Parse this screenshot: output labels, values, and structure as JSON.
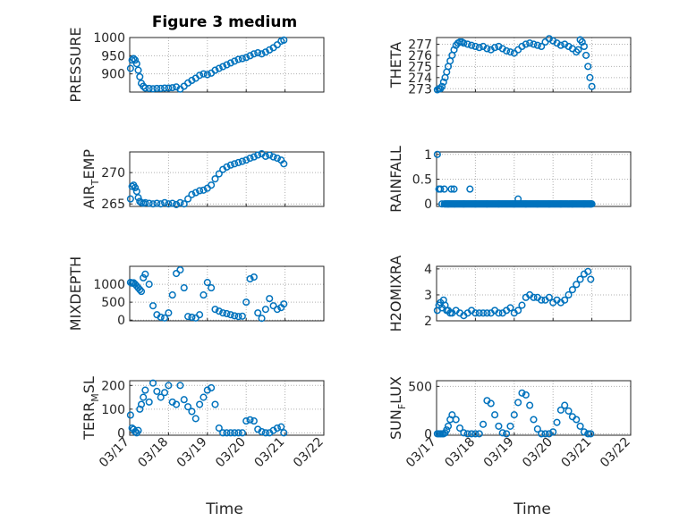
{
  "figure": {
    "title": "Figure 3 medium",
    "marker_color": "#0072BD",
    "x_ticks": [
      "03/17",
      "03/18",
      "03/19",
      "03/20",
      "03/21",
      "03/22"
    ],
    "x_label": "Time"
  },
  "chart_data": [
    {
      "type": "scatter",
      "name": "pressure",
      "ylabel": "PRESSURE",
      "ylabel_sub": "",
      "xlim": [
        0,
        5
      ],
      "ylim": [
        850,
        1000
      ],
      "yticks": [
        900,
        950,
        1000
      ],
      "x": [
        0.02,
        0.06,
        0.1,
        0.14,
        0.18,
        0.22,
        0.26,
        0.3,
        0.35,
        0.4,
        0.5,
        0.6,
        0.7,
        0.8,
        0.9,
        1.0,
        1.1,
        1.2,
        1.3,
        1.4,
        1.5,
        1.6,
        1.7,
        1.8,
        1.9,
        2.0,
        2.1,
        2.2,
        2.3,
        2.4,
        2.5,
        2.6,
        2.7,
        2.8,
        2.9,
        3.0,
        3.1,
        3.2,
        3.3,
        3.4,
        3.5,
        3.6,
        3.7,
        3.8,
        3.9,
        3.97
      ],
      "y": [
        915,
        938,
        942,
        938,
        928,
        910,
        892,
        874,
        866,
        861,
        860,
        859,
        860,
        860,
        861,
        861,
        862,
        864,
        858,
        866,
        875,
        882,
        888,
        896,
        900,
        898,
        902,
        910,
        915,
        920,
        925,
        930,
        935,
        940,
        942,
        945,
        950,
        955,
        958,
        955,
        960,
        966,
        972,
        980,
        990,
        993
      ]
    },
    {
      "type": "scatter",
      "name": "theta",
      "ylabel": "THETA",
      "ylabel_sub": "",
      "xlim": [
        0,
        5
      ],
      "ylim": [
        272.7,
        277.6
      ],
      "yticks": [
        273,
        274,
        275,
        276,
        277
      ],
      "x": [
        0.02,
        0.06,
        0.1,
        0.14,
        0.18,
        0.22,
        0.26,
        0.3,
        0.35,
        0.4,
        0.45,
        0.5,
        0.55,
        0.6,
        0.65,
        0.7,
        0.8,
        0.9,
        1.0,
        1.1,
        1.2,
        1.3,
        1.4,
        1.5,
        1.6,
        1.7,
        1.8,
        1.9,
        2.0,
        2.1,
        2.2,
        2.3,
        2.4,
        2.5,
        2.6,
        2.7,
        2.8,
        2.9,
        3.0,
        3.1,
        3.2,
        3.3,
        3.4,
        3.5,
        3.6,
        3.65,
        3.7,
        3.75,
        3.8,
        3.85,
        3.9,
        3.95,
        4.0
      ],
      "y": [
        272.9,
        273.0,
        273.0,
        273.2,
        273.6,
        274.0,
        274.5,
        275.0,
        275.5,
        276.0,
        276.5,
        276.9,
        277.1,
        277.2,
        277.2,
        277.1,
        277.0,
        276.9,
        276.8,
        276.7,
        276.8,
        276.6,
        276.5,
        276.7,
        276.8,
        276.6,
        276.4,
        276.3,
        276.2,
        276.5,
        276.8,
        277.0,
        277.1,
        277.0,
        276.9,
        276.8,
        277.2,
        277.5,
        277.3,
        277.1,
        276.9,
        277.0,
        276.8,
        276.6,
        276.3,
        276.5,
        277.4,
        277.2,
        276.8,
        276.0,
        275.0,
        274.0,
        273.2
      ]
    },
    {
      "type": "scatter",
      "name": "air_temp",
      "ylabel": "AIR",
      "ylabel_sub": "T",
      "ylabel_suffix": "EMP",
      "xlim": [
        0,
        5
      ],
      "ylim": [
        264.6,
        273.3
      ],
      "yticks": [
        265,
        270
      ],
      "x": [
        0.02,
        0.06,
        0.1,
        0.14,
        0.18,
        0.22,
        0.26,
        0.3,
        0.35,
        0.4,
        0.5,
        0.6,
        0.7,
        0.8,
        0.9,
        1.0,
        1.1,
        1.2,
        1.3,
        1.4,
        1.5,
        1.6,
        1.7,
        1.8,
        1.9,
        2.0,
        2.1,
        2.2,
        2.3,
        2.4,
        2.5,
        2.6,
        2.7,
        2.8,
        2.9,
        3.0,
        3.1,
        3.2,
        3.3,
        3.4,
        3.5,
        3.6,
        3.7,
        3.8,
        3.9,
        3.97
      ],
      "y": [
        265.8,
        267.8,
        268.0,
        267.6,
        267.0,
        266.0,
        265.4,
        265.2,
        265.1,
        265.2,
        265.1,
        265.0,
        265.1,
        265.0,
        265.2,
        265.0,
        265.1,
        264.9,
        265.2,
        265.0,
        265.8,
        266.5,
        266.8,
        267.1,
        267.2,
        267.5,
        268.0,
        269.0,
        269.8,
        270.5,
        270.9,
        271.2,
        271.4,
        271.6,
        271.8,
        272.0,
        272.3,
        272.5,
        272.8,
        273.0,
        272.6,
        272.8,
        272.5,
        272.3,
        272.0,
        271.4
      ]
    },
    {
      "type": "scatter",
      "name": "rainfall",
      "ylabel": "RAINFALL",
      "ylabel_sub": "",
      "xlim": [
        0,
        5
      ],
      "ylim": [
        -0.05,
        1.05
      ],
      "yticks": [
        0,
        0.5,
        1
      ],
      "x": [
        0.02,
        0.06,
        0.1,
        0.14,
        0.2,
        0.3,
        0.38,
        0.45,
        0.7,
        0.86,
        1.0,
        1.3,
        1.6,
        2.0,
        2.3,
        2.6,
        2.9,
        3.2,
        3.5,
        3.8,
        3.97,
        2.1
      ],
      "y": [
        1.0,
        0.3,
        0.3,
        0.0,
        0.3,
        0.0,
        0.3,
        0.3,
        0.0,
        0.3,
        0.0,
        0.0,
        0.0,
        0.0,
        0.0,
        0.0,
        0.0,
        0.0,
        0.0,
        0.0,
        0.0,
        0.1
      ],
      "baseline": {
        "from": 0.2,
        "to": 4.0,
        "value": 0
      }
    },
    {
      "type": "scatter",
      "name": "mixdepth",
      "ylabel": "MIXDEPTH",
      "ylabel_sub": "",
      "xlim": [
        0,
        5
      ],
      "ylim": [
        -20,
        1500
      ],
      "yticks": [
        0,
        500,
        1000
      ],
      "x": [
        0.02,
        0.06,
        0.1,
        0.14,
        0.18,
        0.22,
        0.26,
        0.3,
        0.35,
        0.4,
        0.5,
        0.6,
        0.7,
        0.8,
        0.9,
        1.0,
        1.1,
        1.2,
        1.3,
        1.4,
        1.5,
        1.6,
        1.7,
        1.8,
        1.9,
        2.0,
        2.1,
        2.2,
        2.3,
        2.4,
        2.5,
        2.6,
        2.7,
        2.8,
        2.9,
        3.0,
        3.1,
        3.2,
        3.3,
        3.4,
        3.5,
        3.6,
        3.7,
        3.8,
        3.9,
        3.97
      ],
      "y": [
        1050,
        1030,
        1040,
        1000,
        950,
        900,
        850,
        800,
        1180,
        1280,
        1000,
        400,
        150,
        80,
        60,
        200,
        700,
        1300,
        1400,
        900,
        100,
        80,
        60,
        150,
        700,
        1050,
        900,
        300,
        250,
        200,
        180,
        150,
        120,
        100,
        110,
        500,
        1150,
        1200,
        200,
        50,
        300,
        600,
        400,
        300,
        350,
        450
      ]
    },
    {
      "type": "scatter",
      "name": "h2omixra",
      "ylabel": "H2OMIXRA",
      "ylabel_sub": "",
      "xlim": [
        0,
        5
      ],
      "ylim": [
        2,
        4.1
      ],
      "yticks": [
        2,
        3,
        4
      ],
      "x": [
        0.02,
        0.06,
        0.1,
        0.14,
        0.18,
        0.22,
        0.26,
        0.3,
        0.35,
        0.4,
        0.5,
        0.6,
        0.7,
        0.8,
        0.9,
        1.0,
        1.1,
        1.2,
        1.3,
        1.4,
        1.5,
        1.6,
        1.7,
        1.8,
        1.9,
        2.0,
        2.1,
        2.2,
        2.3,
        2.4,
        2.5,
        2.6,
        2.7,
        2.8,
        2.9,
        3.0,
        3.1,
        3.2,
        3.3,
        3.4,
        3.5,
        3.6,
        3.7,
        3.8,
        3.9,
        3.97
      ],
      "y": [
        2.4,
        2.6,
        2.7,
        2.5,
        2.8,
        2.6,
        2.4,
        2.4,
        2.3,
        2.3,
        2.4,
        2.3,
        2.2,
        2.3,
        2.4,
        2.3,
        2.3,
        2.3,
        2.3,
        2.3,
        2.4,
        2.3,
        2.3,
        2.4,
        2.5,
        2.3,
        2.4,
        2.6,
        2.9,
        3.0,
        2.9,
        2.9,
        2.8,
        2.8,
        2.9,
        2.7,
        2.8,
        2.7,
        2.8,
        3.0,
        3.2,
        3.4,
        3.6,
        3.8,
        3.9,
        3.6
      ]
    },
    {
      "type": "scatter",
      "name": "terr_msl",
      "ylabel": "TERR",
      "ylabel_sub": "M",
      "ylabel_suffix": "SL",
      "xlim": [
        0,
        5
      ],
      "ylim": [
        -10,
        220
      ],
      "yticks": [
        0,
        100,
        200
      ],
      "x": [
        0.02,
        0.06,
        0.1,
        0.14,
        0.18,
        0.22,
        0.26,
        0.3,
        0.35,
        0.4,
        0.5,
        0.6,
        0.7,
        0.8,
        0.9,
        1.0,
        1.1,
        1.2,
        1.3,
        1.4,
        1.5,
        1.6,
        1.7,
        1.8,
        1.9,
        2.0,
        2.1,
        2.2,
        2.3,
        2.4,
        2.5,
        2.6,
        2.7,
        2.8,
        2.9,
        3.0,
        3.1,
        3.2,
        3.3,
        3.4,
        3.5,
        3.6,
        3.7,
        3.8,
        3.9,
        3.97
      ],
      "y": [
        75,
        20,
        15,
        5,
        0,
        10,
        100,
        120,
        150,
        180,
        130,
        210,
        175,
        150,
        170,
        200,
        130,
        120,
        200,
        140,
        110,
        90,
        60,
        120,
        150,
        180,
        190,
        120,
        20,
        0,
        0,
        0,
        0,
        0,
        0,
        50,
        55,
        50,
        15,
        5,
        0,
        0,
        10,
        20,
        25,
        0
      ]
    },
    {
      "type": "scatter",
      "name": "sun_flux",
      "ylabel": "SUN",
      "ylabel_sub": "F",
      "ylabel_suffix": "LUX",
      "xlim": [
        0,
        5
      ],
      "ylim": [
        -15,
        560
      ],
      "yticks": [
        0,
        500
      ],
      "x": [
        0.02,
        0.06,
        0.1,
        0.14,
        0.18,
        0.22,
        0.26,
        0.3,
        0.35,
        0.4,
        0.5,
        0.6,
        0.7,
        0.8,
        0.9,
        1.0,
        1.1,
        1.2,
        1.3,
        1.4,
        1.5,
        1.6,
        1.7,
        1.8,
        1.9,
        2.0,
        2.1,
        2.2,
        2.3,
        2.4,
        2.5,
        2.6,
        2.7,
        2.8,
        2.9,
        3.0,
        3.1,
        3.2,
        3.3,
        3.4,
        3.5,
        3.6,
        3.7,
        3.8,
        3.9,
        3.97
      ],
      "y": [
        0,
        0,
        0,
        0,
        0,
        10,
        40,
        80,
        150,
        200,
        150,
        60,
        10,
        0,
        0,
        0,
        0,
        100,
        350,
        320,
        200,
        80,
        10,
        0,
        80,
        200,
        330,
        430,
        410,
        300,
        150,
        50,
        0,
        0,
        0,
        20,
        120,
        250,
        300,
        240,
        180,
        150,
        80,
        20,
        0,
        0
      ]
    }
  ]
}
